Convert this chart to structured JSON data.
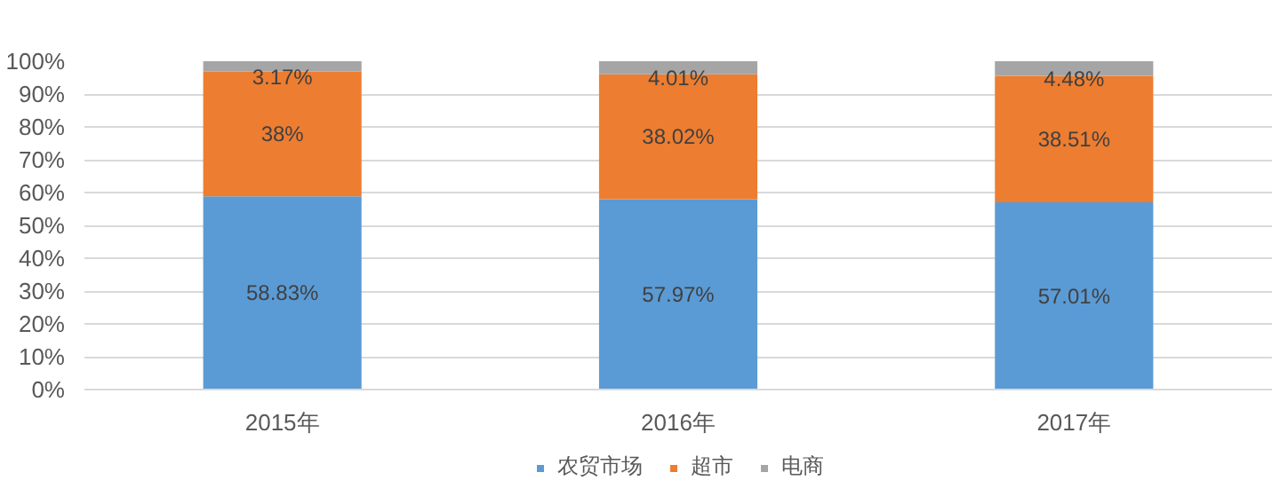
{
  "chart_data": {
    "type": "bar",
    "stacked": true,
    "categories": [
      "2015年",
      "2016年",
      "2017年"
    ],
    "series": [
      {
        "name": "农贸市场",
        "color": "#5b9bd5",
        "values": [
          58.83,
          57.97,
          57.01
        ],
        "value_labels": [
          "58.83%",
          "57.97%",
          "57.01%"
        ]
      },
      {
        "name": "超市",
        "color": "#ed7d31",
        "values": [
          38,
          38.02,
          38.51
        ],
        "value_labels": [
          "38%",
          "38.02%",
          "38.51%"
        ]
      },
      {
        "name": "电商",
        "color": "#a5a5a5",
        "values": [
          3.17,
          4.01,
          4.48
        ],
        "value_labels": [
          "3.17%",
          "4.01%",
          "4.48%"
        ]
      }
    ],
    "ylim": [
      0,
      100
    ],
    "yticks": [
      {
        "value": 0,
        "label": "0%"
      },
      {
        "value": 10,
        "label": "10%"
      },
      {
        "value": 20,
        "label": "20%"
      },
      {
        "value": 30,
        "label": "30%"
      },
      {
        "value": 40,
        "label": "40%"
      },
      {
        "value": 50,
        "label": "50%"
      },
      {
        "value": 60,
        "label": "60%"
      },
      {
        "value": 70,
        "label": "70%"
      },
      {
        "value": 80,
        "label": "80%"
      },
      {
        "value": 90,
        "label": "90%"
      },
      {
        "value": 100,
        "label": "100%"
      }
    ],
    "grid": "y",
    "legend": "bottom"
  }
}
